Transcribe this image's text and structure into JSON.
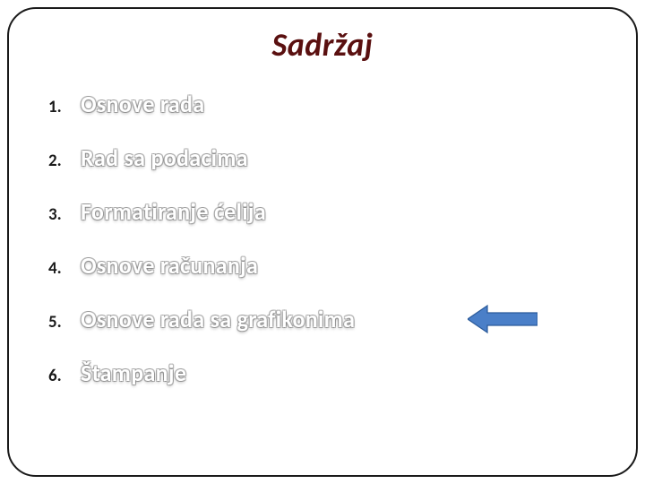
{
  "title": "Sadržaj",
  "items": [
    {
      "num": "1.",
      "label": "Osnove rada"
    },
    {
      "num": "2.",
      "label": "Rad sa podacima"
    },
    {
      "num": "3.",
      "label": "Formatiranje ćelija"
    },
    {
      "num": "4.",
      "label": "Osnove računanja"
    },
    {
      "num": "5.",
      "label": "Osnove rada sa grafikonima"
    },
    {
      "num": "6.",
      "label": "Štampanje"
    }
  ],
  "arrow": {
    "target_index": 4,
    "fill_color": "#4a7fc8",
    "stroke_color": "#2a5a9a",
    "width": 78,
    "height": 34
  },
  "colors": {
    "title_color": "#5a1010",
    "item_text_color": "#ffffff",
    "num_color": "#1a1a1a",
    "frame_border": "#1a1a1a",
    "background": "#ffffff"
  }
}
